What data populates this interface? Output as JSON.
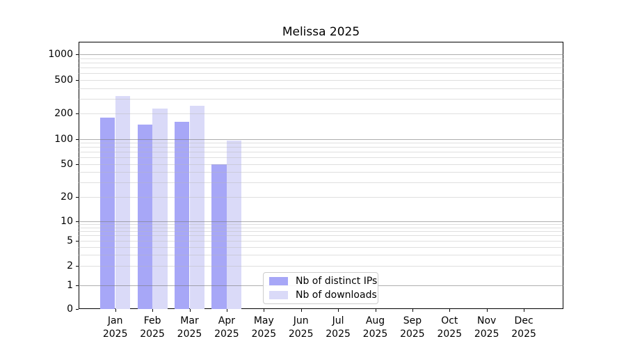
{
  "chart_data": {
    "type": "bar",
    "title": "Melissa 2025",
    "x_tick_line1": [
      "Jan",
      "Feb",
      "Mar",
      "Apr",
      "May",
      "Jun",
      "Jul",
      "Aug",
      "Sep",
      "Oct",
      "Nov",
      "Dec"
    ],
    "x_tick_line2": "2025",
    "series": [
      {
        "name": "Nb of distinct IPs",
        "color": "#a7a7f7",
        "values": [
          180,
          148,
          160,
          50,
          0,
          0,
          0,
          0,
          0,
          0,
          0,
          0
        ]
      },
      {
        "name": "Nb of downloads",
        "color": "#dadaf8",
        "values": [
          325,
          231,
          247,
          96,
          0,
          0,
          0,
          0,
          0,
          0,
          0,
          0
        ]
      }
    ],
    "y_ticks": [
      0,
      1,
      2,
      5,
      10,
      20,
      50,
      100,
      200,
      500,
      1000
    ],
    "y_scale": "log-like, compressed toward zero (0,1,2,5,10,20,50,100,200,500,1000)",
    "ylim": [
      0,
      1400
    ],
    "grid": "horizontal major gridlines at 1/10/100/1000, minor at 2-9 per decade, drawn over bars",
    "legend_position": "lower center inside plot"
  },
  "colors": {
    "background": "#ffffff",
    "bar_distinct_ips": "#a7a7f7",
    "bar_downloads": "#dadaf8",
    "grid_major": "#b0b0b0",
    "grid_minor": "#e3e3e3",
    "spine": "#000000",
    "text": "#000000",
    "legend_border": "#cccccc"
  }
}
